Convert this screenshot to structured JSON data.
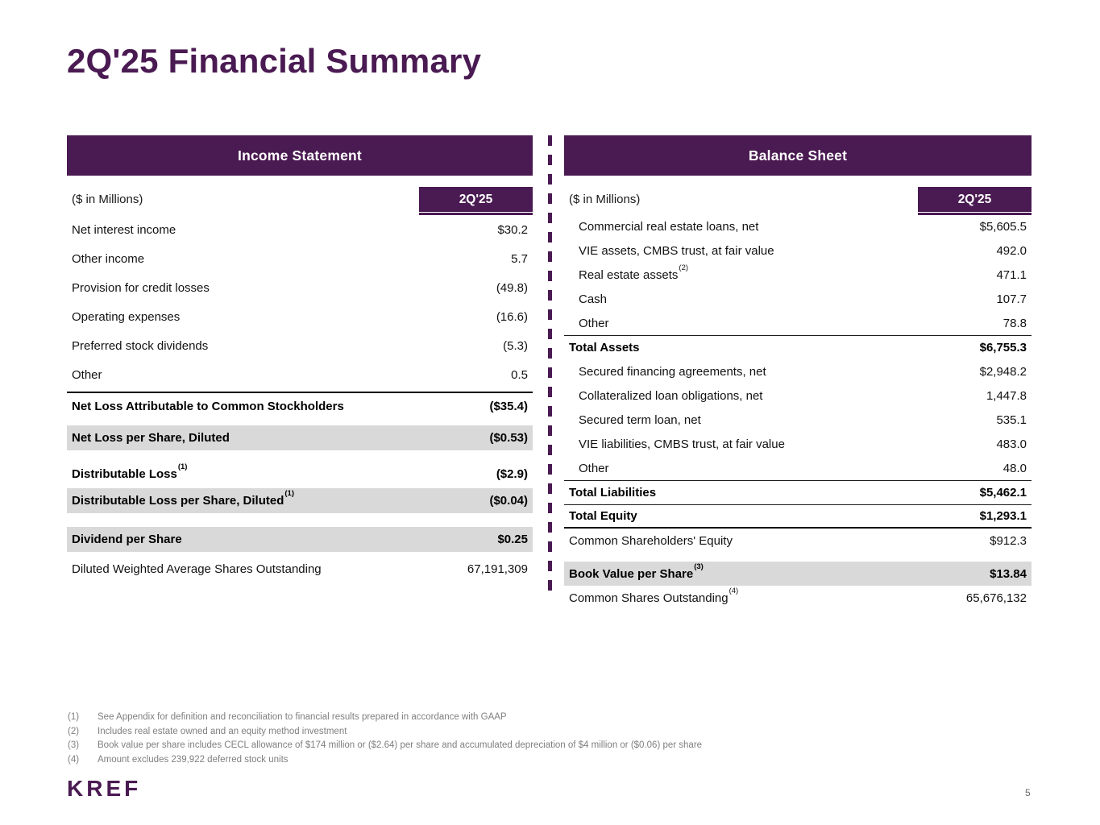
{
  "page": {
    "title": "2Q'25 Financial Summary",
    "logo": "KREF",
    "page_number": "5"
  },
  "colors": {
    "brand_purple": "#4A1A52",
    "row_gray": "#D9D9D9",
    "footnote_gray": "#7F7F7F"
  },
  "income_statement": {
    "header": "Income Statement",
    "units_label": "($ in Millions)",
    "period_label": "2Q'25",
    "rows": [
      {
        "label": "Net interest income",
        "value": "$30.2"
      },
      {
        "label": "Other income",
        "value": "5.7"
      },
      {
        "label": "Provision for credit losses",
        "value": "(49.8)"
      },
      {
        "label": "Operating expenses",
        "value": "(16.6)"
      },
      {
        "label": "Preferred stock dividends",
        "value": "(5.3)"
      },
      {
        "label": "Other",
        "value": "0.5"
      },
      {
        "label": "Net Loss Attributable to Common Stockholders",
        "value": "($35.4)"
      },
      {
        "label": "Net Loss per Share, Diluted",
        "value": "($0.53)"
      },
      {
        "label": "Distributable Loss",
        "sup": "(1)",
        "value": "($2.9)"
      },
      {
        "label": "Distributable Loss per Share, Diluted",
        "sup": "(1)",
        "value": "($0.04)"
      },
      {
        "label": "Dividend per Share",
        "value": "$0.25"
      },
      {
        "label": "Diluted Weighted Average Shares Outstanding",
        "value": "67,191,309"
      }
    ]
  },
  "balance_sheet": {
    "header": "Balance Sheet",
    "units_label": "($ in Millions)",
    "period_label": "2Q'25",
    "rows": [
      {
        "label": "Commercial real estate loans, net",
        "value": "$5,605.5"
      },
      {
        "label": "VIE assets, CMBS trust, at fair value",
        "value": "492.0"
      },
      {
        "label": "Real estate assets",
        "sup": "(2)",
        "value": "471.1"
      },
      {
        "label": "Cash",
        "value": "107.7"
      },
      {
        "label": "Other",
        "value": "78.8"
      },
      {
        "label": "Total Assets",
        "value": "$6,755.3"
      },
      {
        "label": "Secured financing agreements, net",
        "value": "$2,948.2"
      },
      {
        "label": "Collateralized loan obligations, net",
        "value": "1,447.8"
      },
      {
        "label": "Secured term loan, net",
        "value": "535.1"
      },
      {
        "label": "VIE liabilities, CMBS trust, at fair value",
        "value": "483.0"
      },
      {
        "label": "Other",
        "value": "48.0"
      },
      {
        "label": "Total Liabilities",
        "value": "$5,462.1"
      },
      {
        "label": "Total Equity",
        "value": "$1,293.1"
      },
      {
        "label": "Common Shareholders' Equity",
        "value": "$912.3"
      },
      {
        "label": "Book Value per Share",
        "sup": "(3)",
        "value": "$13.84"
      },
      {
        "label": "Common Shares Outstanding",
        "sup": "(4)",
        "value": "65,676,132"
      }
    ]
  },
  "footnotes": [
    {
      "num": "(1)",
      "text": "See Appendix for definition and reconciliation to financial results prepared in accordance with GAAP"
    },
    {
      "num": "(2)",
      "text": "Includes real estate owned and an equity method investment"
    },
    {
      "num": "(3)",
      "text": "Book value per share includes CECL allowance of $174 million or ($2.64) per share and accumulated depreciation of $4 million or ($0.06) per share"
    },
    {
      "num": "(4)",
      "text": "Amount excludes 239,922 deferred stock units"
    }
  ]
}
